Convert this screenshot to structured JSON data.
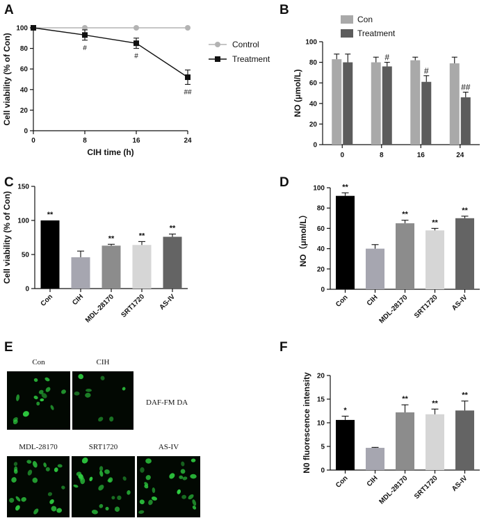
{
  "colors": {
    "ink": "#111111",
    "control": "#b3b3b3",
    "cell_bg": "#020802",
    "cell_fg": "#2ecc40"
  },
  "chart_data": [
    {
      "panel": "A",
      "type": "line",
      "xlabel": "CIH time (h)",
      "ylabel": "Cell viability (% of Con)",
      "xlim": [
        0,
        24
      ],
      "ylim": [
        0,
        100
      ],
      "x_ticks": [
        0,
        8,
        16,
        24
      ],
      "y_ticks": [
        0,
        20,
        40,
        60,
        80,
        100
      ],
      "legend": "right",
      "series": [
        {
          "name": "Control",
          "marker": "circle",
          "color": "#b3b3b3",
          "x": [
            0,
            8,
            16,
            24
          ],
          "values": [
            100,
            100,
            100,
            100
          ],
          "errors": [
            0,
            0,
            0,
            0
          ],
          "annotations": [
            "",
            "",
            "",
            ""
          ]
        },
        {
          "name": "Treatment",
          "marker": "square",
          "color": "#111111",
          "x": [
            0,
            8,
            16,
            24
          ],
          "values": [
            100,
            93,
            85,
            52
          ],
          "errors": [
            0,
            5,
            5,
            7
          ],
          "annotations": [
            "",
            "#",
            "#",
            "##"
          ]
        }
      ]
    },
    {
      "panel": "B",
      "type": "bar",
      "xlabel": "",
      "ylabel": "NO (μmol/L)",
      "categories": [
        "0",
        "8",
        "16",
        "24"
      ],
      "ylim": [
        0,
        100
      ],
      "y_ticks": [
        0,
        20,
        40,
        60,
        80,
        100
      ],
      "legend": "top-left",
      "series": [
        {
          "name": "Con",
          "color": "#a9a9a9",
          "values": [
            83,
            80,
            82,
            79
          ],
          "errors": [
            5,
            5,
            3,
            6
          ],
          "annotations": [
            "",
            "",
            "",
            ""
          ]
        },
        {
          "name": "Treatment",
          "color": "#5c5c5c",
          "values": [
            80,
            76,
            61,
            46
          ],
          "errors": [
            8,
            4,
            6,
            5
          ],
          "annotations": [
            "",
            "#",
            "#",
            "##"
          ]
        }
      ]
    },
    {
      "panel": "C",
      "type": "bar",
      "xlabel": "",
      "ylabel": "Cell viability (% of Con)",
      "categories": [
        "Con",
        "CIH",
        "MDL-28170",
        "SRT1720",
        "AS-IV"
      ],
      "ylim": [
        0,
        150
      ],
      "y_ticks": [
        0,
        50,
        100,
        150
      ],
      "colors": [
        "#000000",
        "#a6a6b0",
        "#8c8c8c",
        "#d6d6d6",
        "#646464"
      ],
      "values": [
        100,
        46,
        63,
        64,
        76
      ],
      "errors": [
        0,
        9,
        2,
        5,
        4
      ],
      "annotations": [
        "**",
        "",
        "**",
        "**",
        "**"
      ]
    },
    {
      "panel": "D",
      "type": "bar",
      "xlabel": "",
      "ylabel": "NO（μmol/L）",
      "categories": [
        "Con",
        "CIH",
        "MDL-28170",
        "SRT1720",
        "AS-IV"
      ],
      "ylim": [
        0,
        100
      ],
      "y_ticks": [
        0,
        20,
        40,
        60,
        80,
        100
      ],
      "colors": [
        "#000000",
        "#a6a6b0",
        "#8c8c8c",
        "#d6d6d6",
        "#646464"
      ],
      "values": [
        92,
        40,
        65,
        58,
        70
      ],
      "errors": [
        3,
        4,
        3,
        2,
        2
      ],
      "annotations": [
        "**",
        "",
        "**",
        "**",
        "**"
      ]
    },
    {
      "panel": "F",
      "type": "bar",
      "xlabel": "",
      "ylabel": "N0 fluorescence intensity",
      "categories": [
        "Con",
        "CIH",
        "MDL-28170",
        "SRT1720",
        "AS-IV"
      ],
      "ylim": [
        0,
        20
      ],
      "y_ticks": [
        0,
        5,
        10,
        15,
        20
      ],
      "colors": [
        "#000000",
        "#a6a6b0",
        "#8c8c8c",
        "#d6d6d6",
        "#646464"
      ],
      "values": [
        10.6,
        4.7,
        12.2,
        11.8,
        12.6
      ],
      "errors": [
        0.8,
        0.1,
        1.6,
        1.1,
        2.0
      ],
      "annotations": [
        "*",
        "",
        "**",
        "**",
        "**"
      ]
    }
  ],
  "panel_e": {
    "stain_label": "DAF-FM DA",
    "images": [
      {
        "label": "Con",
        "density": "medium"
      },
      {
        "label": "CIH",
        "density": "low"
      },
      {
        "label": "MDL-28170",
        "density": "high"
      },
      {
        "label": "SRT1720",
        "density": "high"
      },
      {
        "label": "AS-IV",
        "density": "high"
      }
    ]
  }
}
